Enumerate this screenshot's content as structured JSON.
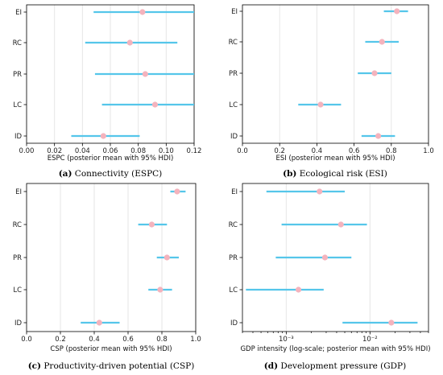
{
  "chart_data": [
    {
      "type": "forest",
      "caption_letter": "(a)",
      "caption_text": " Connectivity (ESPC)",
      "xlabel": "ESPC (posterior mean with 95% HDI)",
      "xscale": "linear",
      "xlim": [
        0.0,
        0.12
      ],
      "xticks": [
        "0.00",
        "0.02",
        "0.04",
        "0.06",
        "0.08",
        "0.10",
        "0.12"
      ],
      "xtick_values": [
        0.0,
        0.02,
        0.04,
        0.06,
        0.08,
        0.1,
        0.12
      ],
      "categories": [
        "EI",
        "RC",
        "PR",
        "LC",
        "ID"
      ],
      "mean": [
        0.083,
        0.074,
        0.085,
        0.092,
        0.055
      ],
      "hdi_low": [
        0.048,
        0.042,
        0.049,
        0.054,
        0.032
      ],
      "hdi_high": [
        0.12,
        0.108,
        0.12,
        0.12,
        0.081
      ],
      "grid": true
    },
    {
      "type": "forest",
      "caption_letter": "(b)",
      "caption_text": " Ecological risk (ESI)",
      "xlabel": "ESI (posterior mean with 95% HDI)",
      "xscale": "linear",
      "xlim": [
        0.0,
        1.0
      ],
      "xticks": [
        "0.0",
        "0.2",
        "0.4",
        "0.6",
        "0.8",
        "1.0"
      ],
      "xtick_values": [
        0.0,
        0.2,
        0.4,
        0.6,
        0.8,
        1.0
      ],
      "categories": [
        "EI",
        "RC",
        "PR",
        "LC",
        "ID"
      ],
      "mean": [
        0.83,
        0.75,
        0.71,
        0.42,
        0.73
      ],
      "hdi_low": [
        0.76,
        0.66,
        0.62,
        0.3,
        0.64
      ],
      "hdi_high": [
        0.89,
        0.84,
        0.8,
        0.53,
        0.82
      ],
      "grid": true
    },
    {
      "type": "forest",
      "caption_letter": "(c)",
      "caption_text": " Productivity-driven potential (CSP)",
      "xlabel": "CSP  (posterior mean with 95% HDI)",
      "xscale": "linear",
      "xlim": [
        0.0,
        1.0
      ],
      "xticks": [
        "0.0",
        "0.2",
        "0.4",
        "0.6",
        "0.8",
        "1.0"
      ],
      "xtick_values": [
        0.0,
        0.2,
        0.4,
        0.6,
        0.8,
        1.0
      ],
      "categories": [
        "EI",
        "RC",
        "PR",
        "LC",
        "ID"
      ],
      "mean": [
        0.89,
        0.74,
        0.83,
        0.79,
        0.43
      ],
      "hdi_low": [
        0.85,
        0.66,
        0.77,
        0.72,
        0.32
      ],
      "hdi_high": [
        0.94,
        0.83,
        0.9,
        0.86,
        0.55
      ],
      "grid": true
    },
    {
      "type": "forest",
      "caption_letter": "(d)",
      "caption_text": " Development pressure (GDP)",
      "xlabel": "GDP intensity (log-scale; posterior mean with 95% HDI)",
      "xscale": "log",
      "xlim": [
        0.0003,
        0.05
      ],
      "xticks": [
        "10⁻³",
        "10⁻²"
      ],
      "xtick_values": [
        0.001,
        0.01
      ],
      "categories": [
        "EI",
        "RC",
        "PR",
        "LC",
        "ID"
      ],
      "mean": [
        0.0025,
        0.0045,
        0.0029,
        0.0014,
        0.018
      ],
      "hdi_low": [
        0.00058,
        0.00088,
        0.00075,
        0.00033,
        0.0047
      ],
      "hdi_high": [
        0.005,
        0.0092,
        0.006,
        0.0028,
        0.037
      ],
      "grid": true
    }
  ],
  "colors": {
    "interval": "#55c6ea",
    "point": "#f4b3bd",
    "grid": "#e6e6e6",
    "axis": "#000000"
  }
}
